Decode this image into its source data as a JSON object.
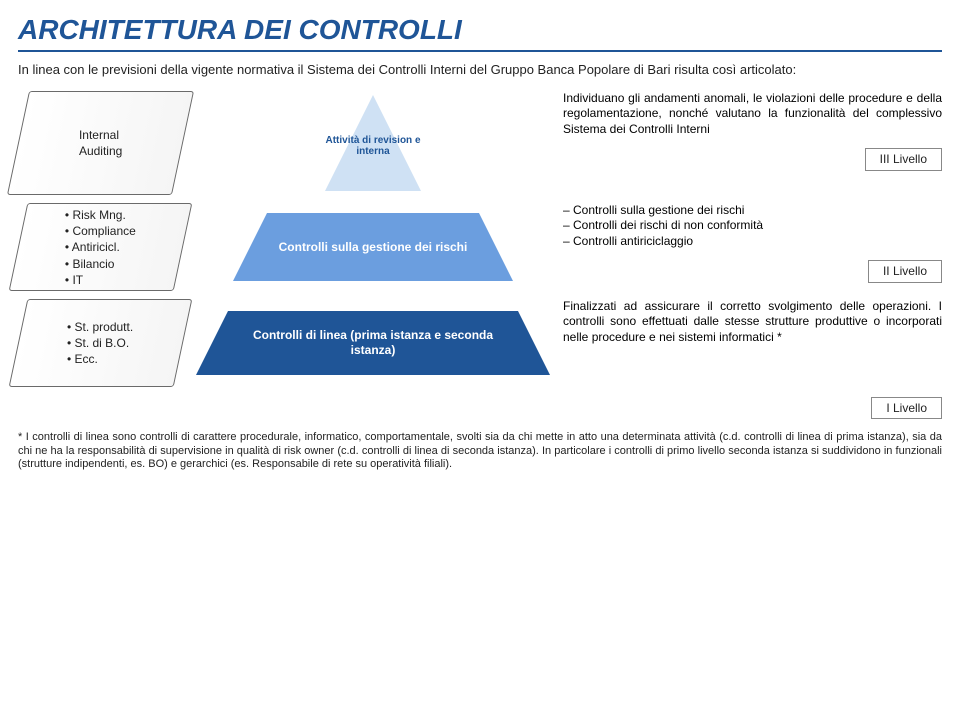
{
  "title": "ARCHITETTURA DEI CONTROLLI",
  "intro": "In linea con le previsioni della vigente normativa il Sistema dei Controlli Interni del Gruppo Banca Popolare di Bari risulta così articolato:",
  "colors": {
    "brand": "#1f5597",
    "pyr_top": "#cfe1f4",
    "pyr_mid": "#6b9edf",
    "pyr_bot": "#1f5597",
    "text": "#222222",
    "white": "#ffffff",
    "box_border": "#6a6a6a"
  },
  "typography": {
    "title_fontsize": 28,
    "title_weight": 700,
    "title_style": "italic",
    "body_fontsize": 12,
    "footnote_fontsize": 11
  },
  "rows": [
    {
      "left_lines": [
        "Internal",
        "Auditing"
      ],
      "pyramid": {
        "part": "top",
        "label": "Attività di revision e interna"
      },
      "desc_text": "Individuano gli andamenti anomali, le violazioni delle procedure e della regolamentazione, nonché valutano la funzionalità del complessivo Sistema dei Controlli Interni",
      "level": "III Livello"
    },
    {
      "left_bullets": [
        "Risk Mng.",
        "Compliance",
        "Antiricicl.",
        "Bilancio",
        "IT"
      ],
      "pyramid": {
        "part": "mid",
        "label": "Controlli sulla gestione dei rischi"
      },
      "desc_list": [
        "Controlli sulla gestione dei rischi",
        "Controlli dei rischi di non conformità",
        "Controlli antiriciclaggio"
      ],
      "level": "II Livello"
    },
    {
      "left_bullets": [
        "St. produtt.",
        "St. di B.O.",
        "Ecc."
      ],
      "pyramid": {
        "part": "bot",
        "label": "Controlli di linea (prima istanza e seconda istanza)"
      },
      "desc_text": "Finalizzati ad assicurare il corretto svolgimento delle operazioni. I controlli sono effettuati dalle stesse strutture produttive o incorporati nelle procedure e nei sistemi informatici *",
      "level": ""
    }
  ],
  "level1": "I Livello",
  "footnote": "* I controlli di linea sono controlli di carattere procedurale, informatico, comportamentale, svolti sia da chi mette in atto una determinata attività (c.d. controlli di linea di prima istanza), sia da chi ne ha la responsabilità di supervisione in qualità di risk owner (c.d. controlli di linea di seconda istanza). In particolare i controlli di primo livello seconda istanza si suddividono in funzionali (strutture indipendenti, es. BO) e gerarchici (es. Responsabile di rete su operatività filiali)."
}
